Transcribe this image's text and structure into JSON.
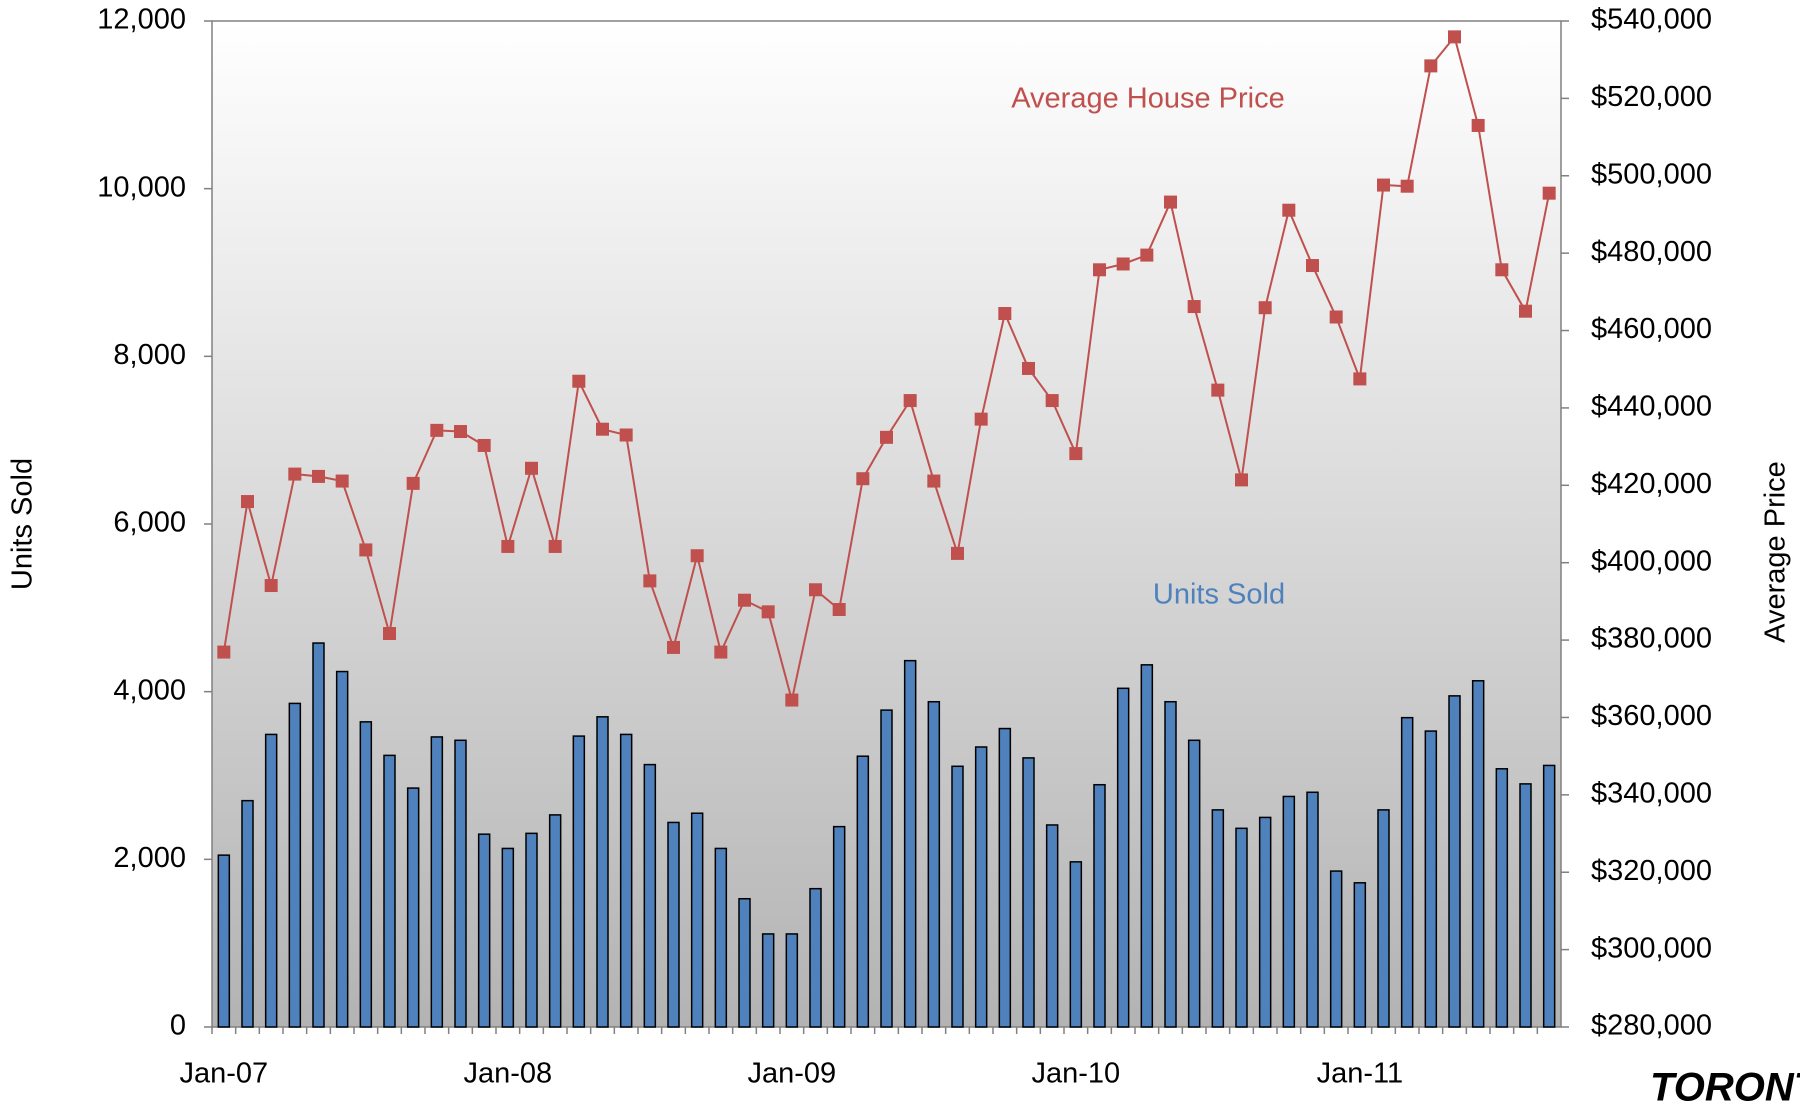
{
  "chart_data": {
    "type": "bar",
    "categories": [
      "Jan-07",
      null,
      null,
      null,
      null,
      null,
      null,
      null,
      null,
      null,
      null,
      null,
      "Jan-08",
      null,
      null,
      null,
      null,
      null,
      null,
      null,
      null,
      null,
      null,
      null,
      "Jan-09",
      null,
      null,
      null,
      null,
      null,
      null,
      null,
      null,
      null,
      null,
      null,
      "Jan-10",
      null,
      null,
      null,
      null,
      null,
      null,
      null,
      null,
      null,
      null,
      null,
      "Jan-11",
      null,
      null,
      null,
      null,
      null,
      null,
      null,
      null
    ],
    "y_label": "Units Sold",
    "y2_label": "Average Price",
    "annotations": [
      {
        "text": "Average House Price",
        "color": "#c0504d"
      },
      {
        "text": "Units Sold",
        "color": "#4f81bd"
      }
    ],
    "logo": "TORONTO",
    "series": [
      {
        "name": "Units Sold",
        "type": "bar",
        "color": "#4f81bd",
        "values": [
          2050,
          2700,
          3490,
          3860,
          4580,
          4240,
          3640,
          3240,
          2850,
          3460,
          3420,
          2300,
          2130,
          2310,
          2530,
          3470,
          3700,
          3490,
          3130,
          2440,
          2550,
          2130,
          1530,
          1110,
          1110,
          1650,
          2390,
          3230,
          3780,
          4370,
          3880,
          3110,
          3340,
          3560,
          3210,
          2410,
          1970,
          2890,
          4040,
          4320,
          3880,
          3420,
          2590,
          2370,
          2500,
          2750,
          2800,
          1860,
          1720,
          2590,
          3690,
          3530,
          3950,
          4130,
          3080,
          2900,
          3120
        ]
      },
      {
        "name": "Average House Price",
        "type": "line",
        "axis": "y2",
        "color": "#c0504d",
        "values": [
          376900,
          415800,
          394100,
          422900,
          422300,
          421100,
          403300,
          381700,
          420500,
          434200,
          433900,
          430300,
          404200,
          424400,
          404200,
          446900,
          434500,
          433000,
          395300,
          378100,
          401800,
          376900,
          390300,
          387300,
          364500,
          393000,
          387900,
          421700,
          432400,
          441900,
          421100,
          402400,
          437100,
          464400,
          450200,
          441900,
          428200,
          475700,
          477200,
          479500,
          493200,
          466200,
          444600,
          421400,
          465900,
          491100,
          476800,
          463500,
          447500,
          497600,
          497300,
          528400,
          535900,
          513000,
          475700,
          465000,
          495500
        ]
      }
    ],
    "ylim": [
      0,
      12000
    ],
    "yticks": [
      0,
      {
        "value": 2000,
        "label": "2,000"
      },
      {
        "value": 4000,
        "label": "4,000"
      },
      {
        "value": 6000,
        "label": "6,000"
      },
      {
        "value": 8000,
        "label": "8,000"
      },
      {
        "value": 10000,
        "label": "10,000"
      },
      {
        "value": 12000,
        "label": "12,000"
      }
    ],
    "y2lim": [
      280000,
      540000
    ],
    "y2ticks": [
      {
        "value": 280000,
        "label": "$280,000"
      },
      {
        "value": 300000,
        "label": "$300,000"
      },
      {
        "value": 320000,
        "label": "$320,000"
      },
      {
        "value": 340000,
        "label": "$340,000"
      },
      {
        "value": 360000,
        "label": "$360,000"
      },
      {
        "value": 380000,
        "label": "$380,000"
      },
      {
        "value": 400000,
        "label": "$400,000"
      },
      {
        "value": 420000,
        "label": "$420,000"
      },
      {
        "value": 440000,
        "label": "$440,000"
      },
      {
        "value": 460000,
        "label": "$460,000"
      },
      {
        "value": 480000,
        "label": "$480,000"
      },
      {
        "value": 500000,
        "label": "$500,000"
      },
      {
        "value": 520000,
        "label": "$520,000"
      },
      {
        "value": 540000,
        "label": "$540,000"
      }
    ],
    "grid": false
  }
}
